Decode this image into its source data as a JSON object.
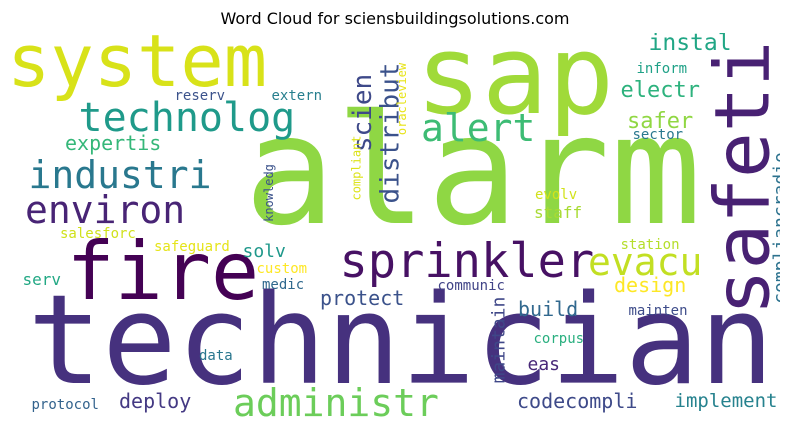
{
  "chart_data": {
    "type": "wordcloud",
    "title": "Word Cloud for sciensbuildingsolutions.com",
    "words": [
      {
        "text": "technician",
        "weight": 100,
        "color": "#46317e",
        "rot": false
      },
      {
        "text": "alarm",
        "weight": 98,
        "color": "#8fd744",
        "rot": false
      },
      {
        "text": "sap",
        "weight": 88,
        "color": "#a0da39",
        "rot": false
      },
      {
        "text": "system",
        "weight": 68,
        "color": "#d8e219",
        "rot": false
      },
      {
        "text": "fire",
        "weight": 66,
        "color": "#440154",
        "rot": false
      },
      {
        "text": "safeti",
        "weight": 60,
        "color": "#482173",
        "rot": true
      },
      {
        "text": "sprinkler",
        "weight": 44,
        "color": "#471164",
        "rot": false
      },
      {
        "text": "technolog",
        "weight": 36,
        "color": "#1f9a8a",
        "rot": false
      },
      {
        "text": "industri",
        "weight": 32,
        "color": "#29788e",
        "rot": false
      },
      {
        "text": "environ",
        "weight": 32,
        "color": "#482475",
        "rot": false
      },
      {
        "text": "evacu",
        "weight": 30,
        "color": "#c2df23",
        "rot": false
      },
      {
        "text": "alert",
        "weight": 30,
        "color": "#3dbc74",
        "rot": false
      },
      {
        "text": "administr",
        "weight": 30,
        "color": "#6ccd5a",
        "rot": false
      },
      {
        "text": "distribut",
        "weight": 22,
        "color": "#3b528b",
        "rot": true
      },
      {
        "text": "scien",
        "weight": 22,
        "color": "#3e4989",
        "rot": true
      },
      {
        "text": "instal",
        "weight": 20,
        "color": "#21a685",
        "rot": false
      },
      {
        "text": "electr",
        "weight": 20,
        "color": "#2db27d",
        "rot": false
      },
      {
        "text": "safer",
        "weight": 18,
        "color": "#90d743",
        "rot": false
      },
      {
        "text": "expertis",
        "weight": 18,
        "color": "#35b779",
        "rot": false
      },
      {
        "text": "design",
        "weight": 18,
        "color": "#fde725",
        "rot": false
      },
      {
        "text": "protect",
        "weight": 18,
        "color": "#3b528b",
        "rot": false
      },
      {
        "text": "build",
        "weight": 18,
        "color": "#31688e",
        "rot": false
      },
      {
        "text": "deploy",
        "weight": 18,
        "color": "#443983",
        "rot": false
      },
      {
        "text": "codecompli",
        "weight": 18,
        "color": "#3e4a89",
        "rot": false
      },
      {
        "text": "implement",
        "weight": 18,
        "color": "#26828e",
        "rot": false
      },
      {
        "text": "compliancradio",
        "weight": 16,
        "color": "#2c728e",
        "rot": true
      },
      {
        "text": "maintain",
        "weight": 16,
        "color": "#3f4788",
        "rot": true
      },
      {
        "text": "solv",
        "weight": 16,
        "color": "#1f988b",
        "rot": false
      },
      {
        "text": "eas",
        "weight": 16,
        "color": "#482878",
        "rot": false
      },
      {
        "text": "staff",
        "weight": 14,
        "color": "#a8db34",
        "rot": false
      },
      {
        "text": "serv",
        "weight": 14,
        "color": "#22a884",
        "rot": false
      },
      {
        "text": "salesforc",
        "weight": 12,
        "color": "#d0e11c",
        "rot": false
      },
      {
        "text": "reserv",
        "weight": 12,
        "color": "#3b528b",
        "rot": false
      },
      {
        "text": "extern",
        "weight": 12,
        "color": "#277f8e",
        "rot": false
      },
      {
        "text": "inform",
        "weight": 12,
        "color": "#1fa187",
        "rot": false
      },
      {
        "text": "sector",
        "weight": 12,
        "color": "#2a788e",
        "rot": false
      },
      {
        "text": "evolv",
        "weight": 12,
        "color": "#d2e21b",
        "rot": false
      },
      {
        "text": "station",
        "weight": 12,
        "color": "#b5de2b",
        "rot": false
      },
      {
        "text": "safeguard",
        "weight": 12,
        "color": "#e5e419",
        "rot": false
      },
      {
        "text": "custom",
        "weight": 12,
        "color": "#fde725",
        "rot": false
      },
      {
        "text": "medic",
        "weight": 12,
        "color": "#30698e",
        "rot": false
      },
      {
        "text": "communic",
        "weight": 12,
        "color": "#414487",
        "rot": false
      },
      {
        "text": "mainten",
        "weight": 12,
        "color": "#3e4c8a",
        "rot": false
      },
      {
        "text": "corpus",
        "weight": 12,
        "color": "#29af7f",
        "rot": false
      },
      {
        "text": "data",
        "weight": 12,
        "color": "#2a778e",
        "rot": false
      },
      {
        "text": "protocol",
        "weight": 12,
        "color": "#33638d",
        "rot": false
      },
      {
        "text": "knowledg",
        "weight": 10,
        "color": "#3b528b",
        "rot": true
      },
      {
        "text": "compliant",
        "weight": 10,
        "color": "#dce319",
        "rot": true
      },
      {
        "text": "oracleview",
        "weight": 10,
        "color": "#e7e419",
        "rot": true
      }
    ]
  }
}
